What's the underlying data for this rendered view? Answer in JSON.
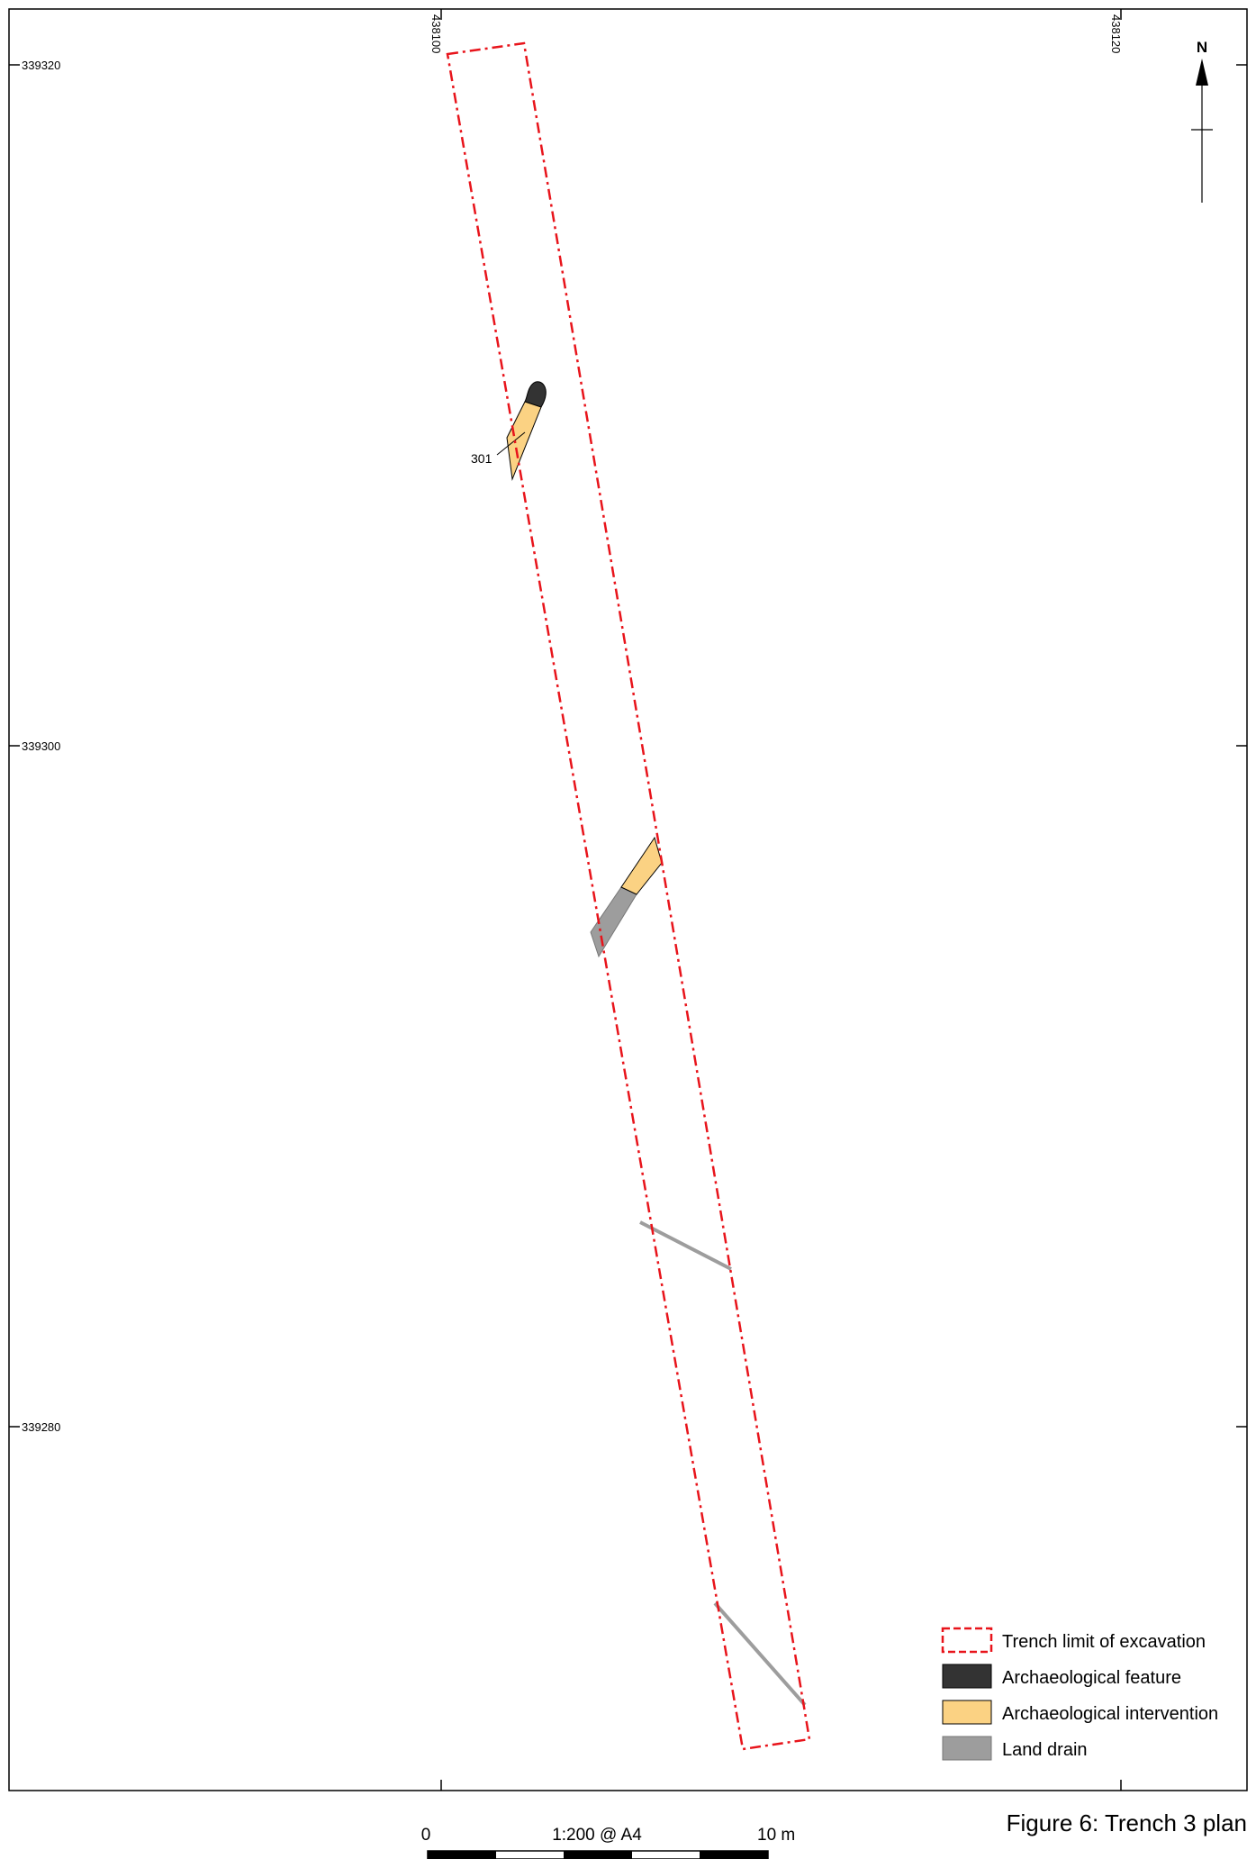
{
  "grid": {
    "eastings": [
      "438100",
      "438120"
    ],
    "northings": [
      "339320",
      "339300",
      "339280"
    ]
  },
  "north_arrow": {
    "label": "N"
  },
  "features": {
    "intervention_label": "301"
  },
  "legend": {
    "items": [
      {
        "label": "Trench limit of excavation",
        "symbol": "dashed-red-outline",
        "color": "#e8141b"
      },
      {
        "label": "Archaeological feature",
        "symbol": "filled-box",
        "color": "#333333"
      },
      {
        "label": "Archaeological intervention",
        "symbol": "filled-box",
        "color": "#fbd283"
      },
      {
        "label": "Land drain",
        "symbol": "filled-box",
        "color": "#9d9d9d"
      }
    ]
  },
  "scale_bar": {
    "start_label": "0",
    "ratio_label": "1:200  @ A4",
    "end_label": "10  m"
  },
  "caption": "Figure 6: Trench 3 plan",
  "colors": {
    "trench": "#e8141b",
    "feature": "#333333",
    "intervention": "#fbd283",
    "drain": "#9d9d9d"
  }
}
